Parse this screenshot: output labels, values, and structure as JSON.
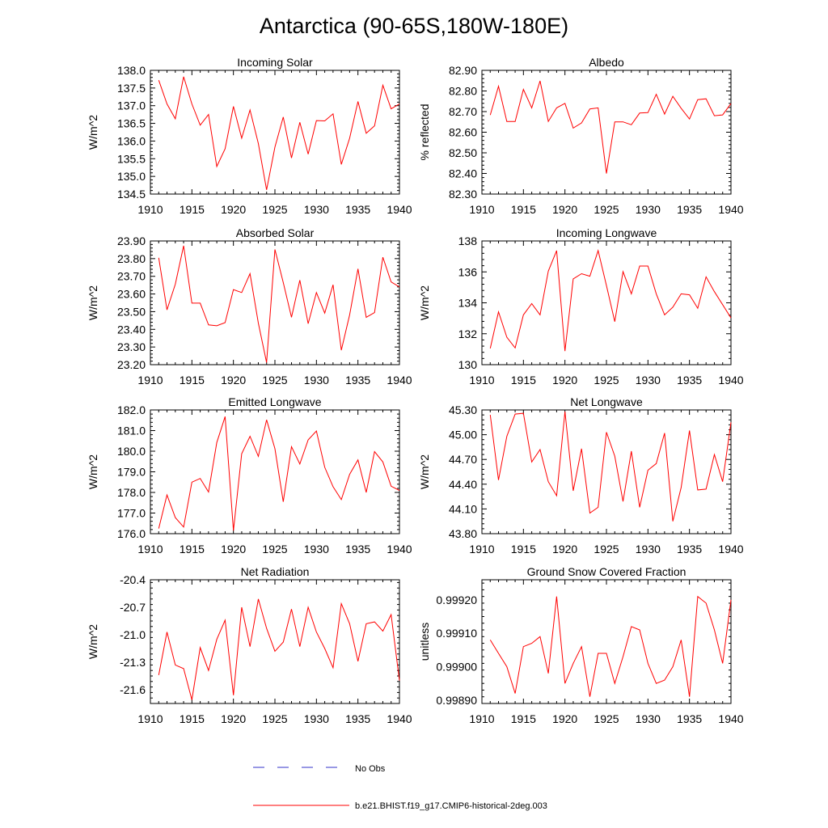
{
  "figure": {
    "title": "Antarctica (90-65S,180W-180E)",
    "line_color": "#ff0000",
    "obs_color": "#3030c8"
  },
  "legend": {
    "obs_label": "No Obs",
    "model_label": "b.e21.BHIST.f19_g17.CMIP6-historical-2deg.003"
  },
  "chart_data": [
    {
      "type": "line",
      "title": "Incoming Solar",
      "ylabel": "W/m^2",
      "xlim": [
        1910,
        1940
      ],
      "ylim": [
        134.5,
        138.0
      ],
      "xticks": [
        1910,
        1915,
        1920,
        1925,
        1930,
        1935,
        1940
      ],
      "yticks": [
        "134.5",
        "135.0",
        "135.5",
        "136.0",
        "136.5",
        "137.0",
        "137.5",
        "138.0"
      ],
      "x": [
        1911,
        1912,
        1913,
        1914,
        1915,
        1916,
        1917,
        1918,
        1919,
        1920,
        1921,
        1922,
        1923,
        1924,
        1925,
        1926,
        1927,
        1928,
        1929,
        1930,
        1931,
        1932,
        1933,
        1934,
        1935,
        1936,
        1937,
        1938,
        1939,
        1940
      ],
      "values": [
        137.72,
        137.05,
        136.63,
        137.82,
        137.05,
        136.45,
        136.75,
        135.28,
        135.78,
        136.98,
        136.08,
        136.88,
        135.93,
        134.62,
        135.83,
        136.68,
        135.52,
        136.53,
        135.63,
        136.58,
        136.57,
        136.77,
        135.34,
        136.08,
        137.12,
        136.22,
        136.43,
        137.58,
        136.91,
        137.05
      ]
    },
    {
      "type": "line",
      "title": "Albedo",
      "ylabel": "% reflected",
      "xlim": [
        1910,
        1940
      ],
      "ylim": [
        82.3,
        82.9
      ],
      "xticks": [
        1910,
        1915,
        1920,
        1925,
        1930,
        1935,
        1940
      ],
      "yticks": [
        "82.30",
        "82.40",
        "82.50",
        "82.60",
        "82.70",
        "82.80",
        "82.90"
      ],
      "x": [
        1911,
        1912,
        1913,
        1914,
        1915,
        1916,
        1917,
        1918,
        1919,
        1920,
        1921,
        1922,
        1923,
        1924,
        1925,
        1926,
        1927,
        1928,
        1929,
        1930,
        1931,
        1932,
        1933,
        1934,
        1935,
        1936,
        1937,
        1938,
        1939,
        1940
      ],
      "values": [
        82.683,
        82.823,
        82.652,
        82.652,
        82.808,
        82.718,
        82.849,
        82.652,
        82.718,
        82.74,
        82.62,
        82.645,
        82.713,
        82.718,
        82.4,
        82.65,
        82.65,
        82.636,
        82.693,
        82.695,
        82.784,
        82.688,
        82.774,
        82.716,
        82.664,
        82.758,
        82.762,
        82.68,
        82.684,
        82.739
      ]
    },
    {
      "type": "line",
      "title": "Absorbed Solar",
      "ylabel": "W/m^2",
      "xlim": [
        1910,
        1940
      ],
      "ylim": [
        23.2,
        23.9
      ],
      "xticks": [
        1910,
        1915,
        1920,
        1925,
        1930,
        1935,
        1940
      ],
      "yticks": [
        "23.20",
        "23.30",
        "23.40",
        "23.50",
        "23.60",
        "23.70",
        "23.80",
        "23.90"
      ],
      "x": [
        1911,
        1912,
        1913,
        1914,
        1915,
        1916,
        1917,
        1918,
        1919,
        1920,
        1921,
        1922,
        1923,
        1924,
        1925,
        1926,
        1927,
        1928,
        1929,
        1930,
        1931,
        1932,
        1933,
        1934,
        1935,
        1936,
        1937,
        1938,
        1939,
        1940
      ],
      "values": [
        23.805,
        23.51,
        23.655,
        23.873,
        23.548,
        23.548,
        23.425,
        23.42,
        23.438,
        23.625,
        23.608,
        23.715,
        23.435,
        23.212,
        23.852,
        23.665,
        23.468,
        23.678,
        23.432,
        23.608,
        23.492,
        23.652,
        23.282,
        23.482,
        23.742,
        23.468,
        23.495,
        23.808,
        23.668,
        23.64
      ]
    },
    {
      "type": "line",
      "title": "Incoming Longwave",
      "ylabel": "W/m^2",
      "xlim": [
        1910,
        1940
      ],
      "ylim": [
        130,
        138
      ],
      "xticks": [
        1910,
        1915,
        1920,
        1925,
        1930,
        1935,
        1940
      ],
      "yticks": [
        "130",
        "132",
        "134",
        "136",
        "138"
      ],
      "x": [
        1911,
        1912,
        1913,
        1914,
        1915,
        1916,
        1917,
        1918,
        1919,
        1920,
        1921,
        1922,
        1923,
        1924,
        1925,
        1926,
        1927,
        1928,
        1929,
        1930,
        1931,
        1932,
        1933,
        1934,
        1935,
        1936,
        1937,
        1938,
        1939,
        1940
      ],
      "values": [
        131.05,
        133.42,
        131.78,
        131.08,
        133.22,
        133.95,
        133.22,
        136.05,
        137.38,
        130.88,
        135.55,
        135.88,
        135.72,
        137.38,
        135.12,
        132.78,
        136.02,
        134.58,
        136.38,
        136.38,
        134.58,
        133.22,
        133.72,
        134.58,
        134.52,
        133.65,
        135.68,
        134.72,
        133.88,
        133.02
      ]
    },
    {
      "type": "line",
      "title": "Emitted Longwave",
      "ylabel": "W/m^2",
      "xlim": [
        1910,
        1940
      ],
      "ylim": [
        176.0,
        182.0
      ],
      "xticks": [
        1910,
        1915,
        1920,
        1925,
        1930,
        1935,
        1940
      ],
      "yticks": [
        "176.0",
        "177.0",
        "178.0",
        "179.0",
        "180.0",
        "181.0",
        "182.0"
      ],
      "x": [
        1911,
        1912,
        1913,
        1914,
        1915,
        1916,
        1917,
        1918,
        1919,
        1920,
        1921,
        1922,
        1923,
        1924,
        1925,
        1926,
        1927,
        1928,
        1929,
        1930,
        1931,
        1932,
        1933,
        1934,
        1935,
        1936,
        1937,
        1938,
        1939,
        1940
      ],
      "values": [
        176.25,
        177.88,
        176.78,
        176.32,
        178.5,
        178.68,
        178.02,
        180.42,
        181.68,
        176.15,
        179.88,
        180.72,
        179.75,
        181.52,
        180.12,
        177.55,
        180.22,
        179.38,
        180.55,
        180.98,
        179.22,
        178.28,
        177.65,
        178.88,
        179.58,
        178.0,
        179.98,
        179.48,
        178.3,
        178.1
      ]
    },
    {
      "type": "line",
      "title": "Net Longwave",
      "ylabel": "W/m^2",
      "xlim": [
        1910,
        1940
      ],
      "ylim": [
        43.8,
        45.3
      ],
      "xticks": [
        1910,
        1915,
        1920,
        1925,
        1930,
        1935,
        1940
      ],
      "yticks": [
        "43.80",
        "44.10",
        "44.40",
        "44.70",
        "45.00",
        "45.30"
      ],
      "x": [
        1911,
        1912,
        1913,
        1914,
        1915,
        1916,
        1917,
        1918,
        1919,
        1920,
        1921,
        1922,
        1923,
        1924,
        1925,
        1926,
        1927,
        1928,
        1929,
        1930,
        1931,
        1932,
        1933,
        1934,
        1935,
        1936,
        1937,
        1938,
        1939,
        1940
      ],
      "values": [
        45.24,
        44.45,
        44.98,
        45.25,
        45.26,
        44.67,
        44.82,
        44.43,
        44.26,
        45.28,
        44.32,
        44.83,
        44.05,
        44.12,
        45.03,
        44.74,
        44.19,
        44.8,
        44.12,
        44.57,
        44.65,
        45.02,
        43.95,
        44.36,
        45.05,
        44.33,
        44.34,
        44.76,
        44.43,
        45.15
      ]
    },
    {
      "type": "line",
      "title": "Net Radiation",
      "ylabel": "W/m^2",
      "xlim": [
        1910,
        1940
      ],
      "ylim": [
        -21.75,
        -20.4
      ],
      "xticks": [
        1910,
        1915,
        1920,
        1925,
        1930,
        1935,
        1940
      ],
      "yticks": [
        "-21.6",
        "-21.3",
        "-21.0",
        "-20.7",
        "-20.4"
      ],
      "x": [
        1911,
        1912,
        1913,
        1914,
        1915,
        1916,
        1917,
        1918,
        1919,
        1920,
        1921,
        1922,
        1923,
        1924,
        1925,
        1926,
        1927,
        1928,
        1929,
        1930,
        1931,
        1932,
        1933,
        1934,
        1935,
        1936,
        1937,
        1938,
        1939,
        1940
      ],
      "values": [
        -21.44,
        -20.97,
        -21.33,
        -21.37,
        -21.71,
        -21.14,
        -21.39,
        -21.05,
        -20.84,
        -21.66,
        -20.7,
        -21.13,
        -20.61,
        -20.93,
        -21.18,
        -21.08,
        -20.72,
        -21.13,
        -20.7,
        -20.97,
        -21.15,
        -21.36,
        -20.66,
        -20.88,
        -21.29,
        -20.88,
        -20.86,
        -20.96,
        -20.78,
        -21.5
      ]
    },
    {
      "type": "line",
      "title": "Ground Snow Covered Fraction",
      "ylabel": "unitless",
      "xlim": [
        1910,
        1940
      ],
      "ylim": [
        0.99889,
        0.99926
      ],
      "xticks": [
        1910,
        1915,
        1920,
        1925,
        1930,
        1935,
        1940
      ],
      "yticks": [
        "0.99890",
        "0.99900",
        "0.99910",
        "0.99920"
      ],
      "x": [
        1911,
        1912,
        1913,
        1914,
        1915,
        1916,
        1917,
        1918,
        1919,
        1920,
        1921,
        1922,
        1923,
        1924,
        1925,
        1926,
        1927,
        1928,
        1929,
        1930,
        1931,
        1932,
        1933,
        1934,
        1935,
        1936,
        1937,
        1938,
        1939,
        1940
      ],
      "values": [
        0.99908,
        0.99904,
        0.999,
        0.99892,
        0.99906,
        0.99907,
        0.99909,
        0.99898,
        0.99921,
        0.99895,
        0.99901,
        0.99906,
        0.99891,
        0.99904,
        0.99904,
        0.99895,
        0.99903,
        0.99912,
        0.99911,
        0.99901,
        0.99895,
        0.99896,
        0.999,
        0.99908,
        0.99891,
        0.99921,
        0.99919,
        0.99911,
        0.99901,
        0.9992
      ]
    }
  ]
}
